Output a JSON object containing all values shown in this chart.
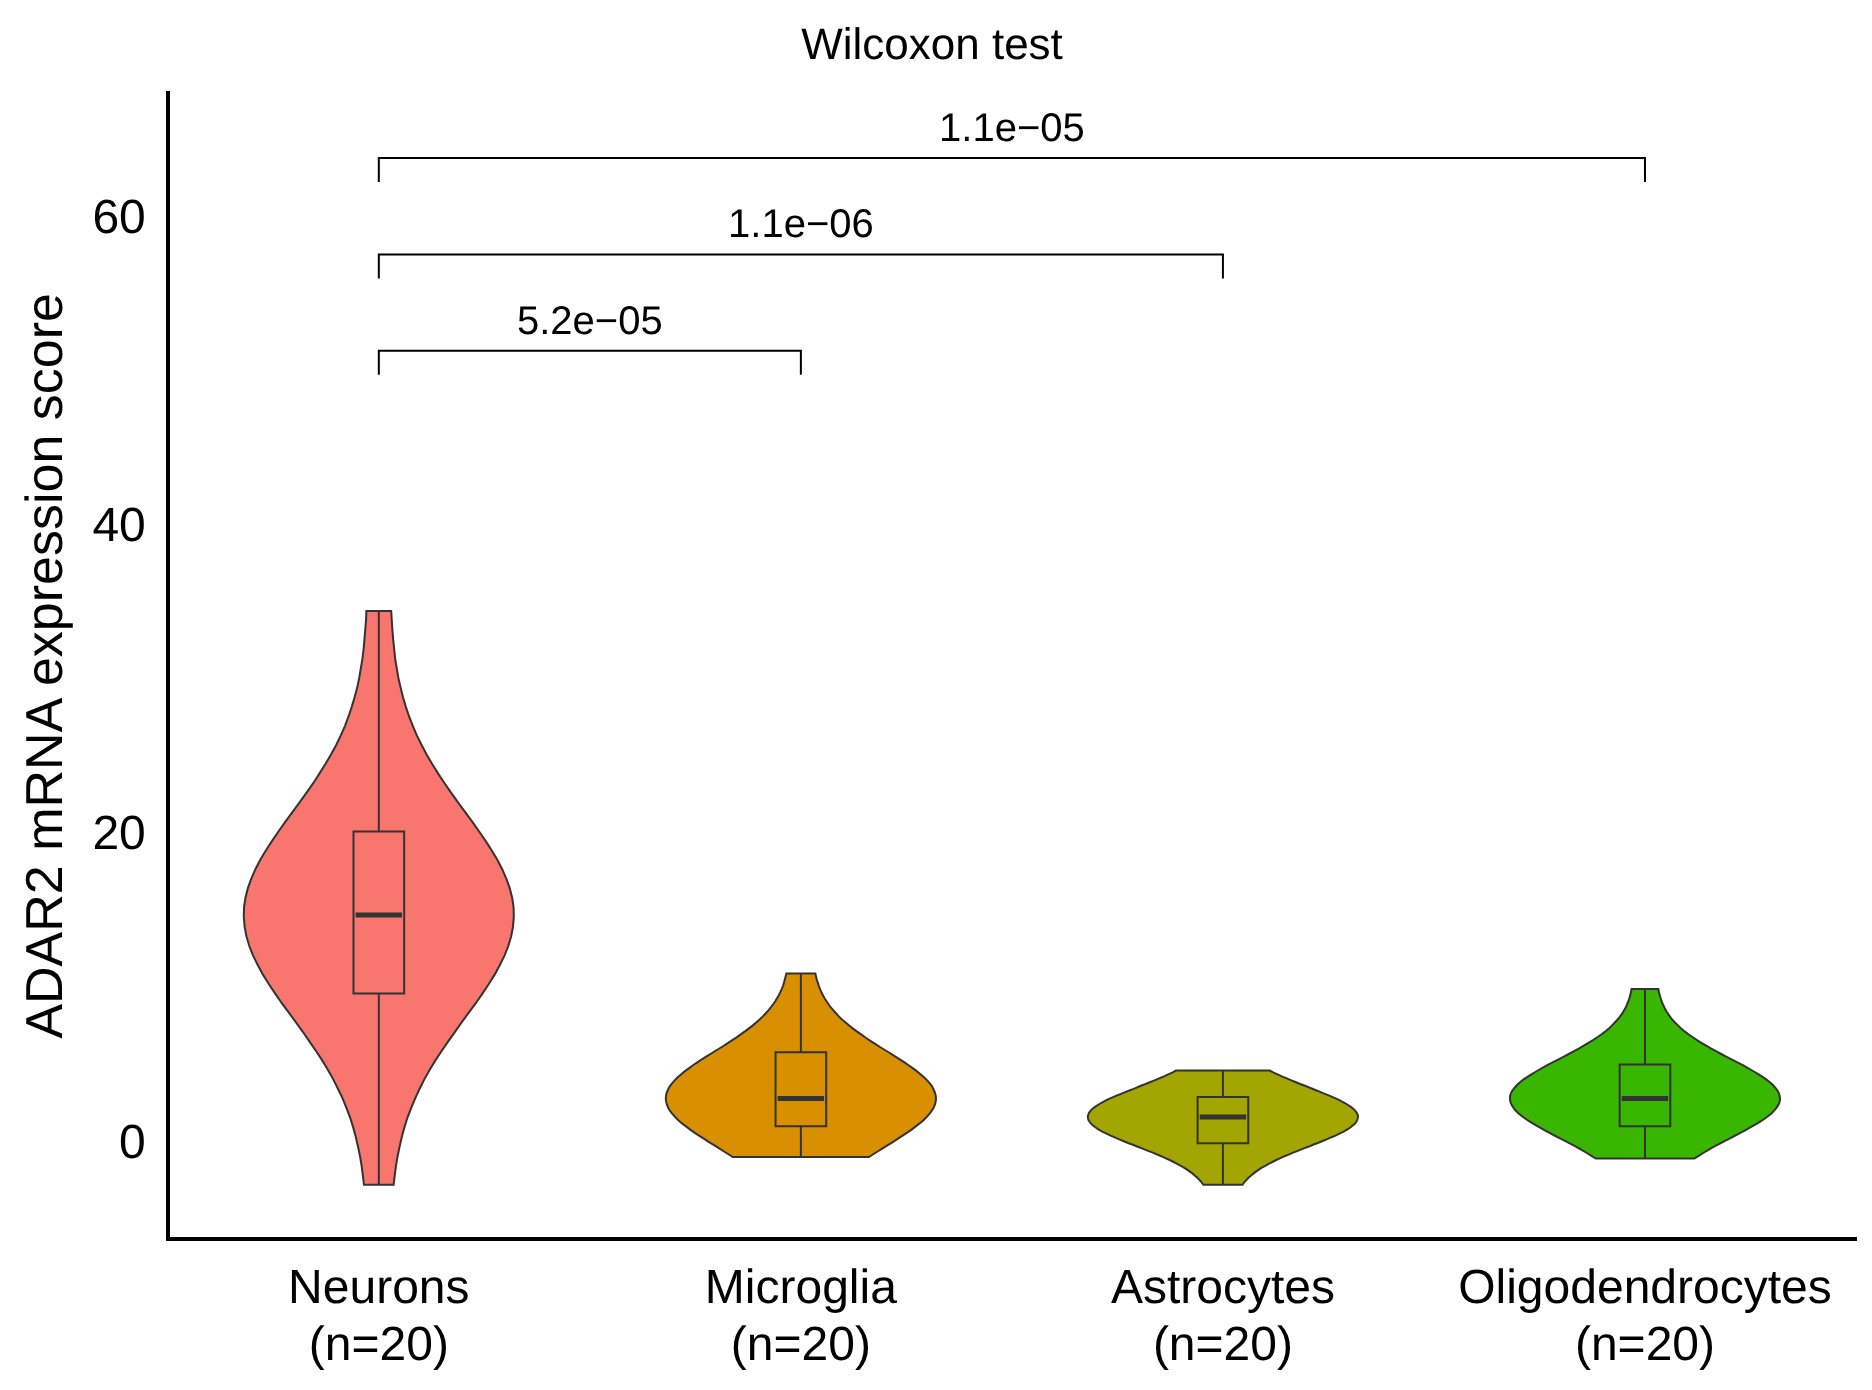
{
  "chart_data": {
    "type": "box",
    "title": "Wilcoxon test",
    "ylabel": "ADAR2 mRNA expression score",
    "categories": [
      "Neurons\n(n=20)",
      "Microglia\n(n=20)",
      "Astrocytes\n(n=20)",
      "Oligodendrocytes\n(n=20)"
    ],
    "colors": [
      "#f8766d",
      "#d89000",
      "#a3a500",
      "#39b600"
    ],
    "boxes": [
      {
        "low": -2.6,
        "q1": 9.8,
        "median": 14.9,
        "q3": 20.3,
        "high": 34.6
      },
      {
        "low": -0.8,
        "q1": 1.2,
        "median": 3.0,
        "q3": 6.0,
        "high": 11.1
      },
      {
        "low": -2.6,
        "q1": 0.1,
        "median": 1.8,
        "q3": 3.1,
        "high": 4.8
      },
      {
        "low": -0.9,
        "q1": 1.2,
        "median": 3.0,
        "q3": 5.2,
        "high": 10.1
      }
    ],
    "annotations": [
      "5.2e−05",
      "1.1e−06",
      "1.1e−05"
    ],
    "ylim": [
      -6.1,
      68.2
    ],
    "yticks": [
      0,
      20,
      40,
      60
    ],
    "grid": false,
    "legend": false
  }
}
